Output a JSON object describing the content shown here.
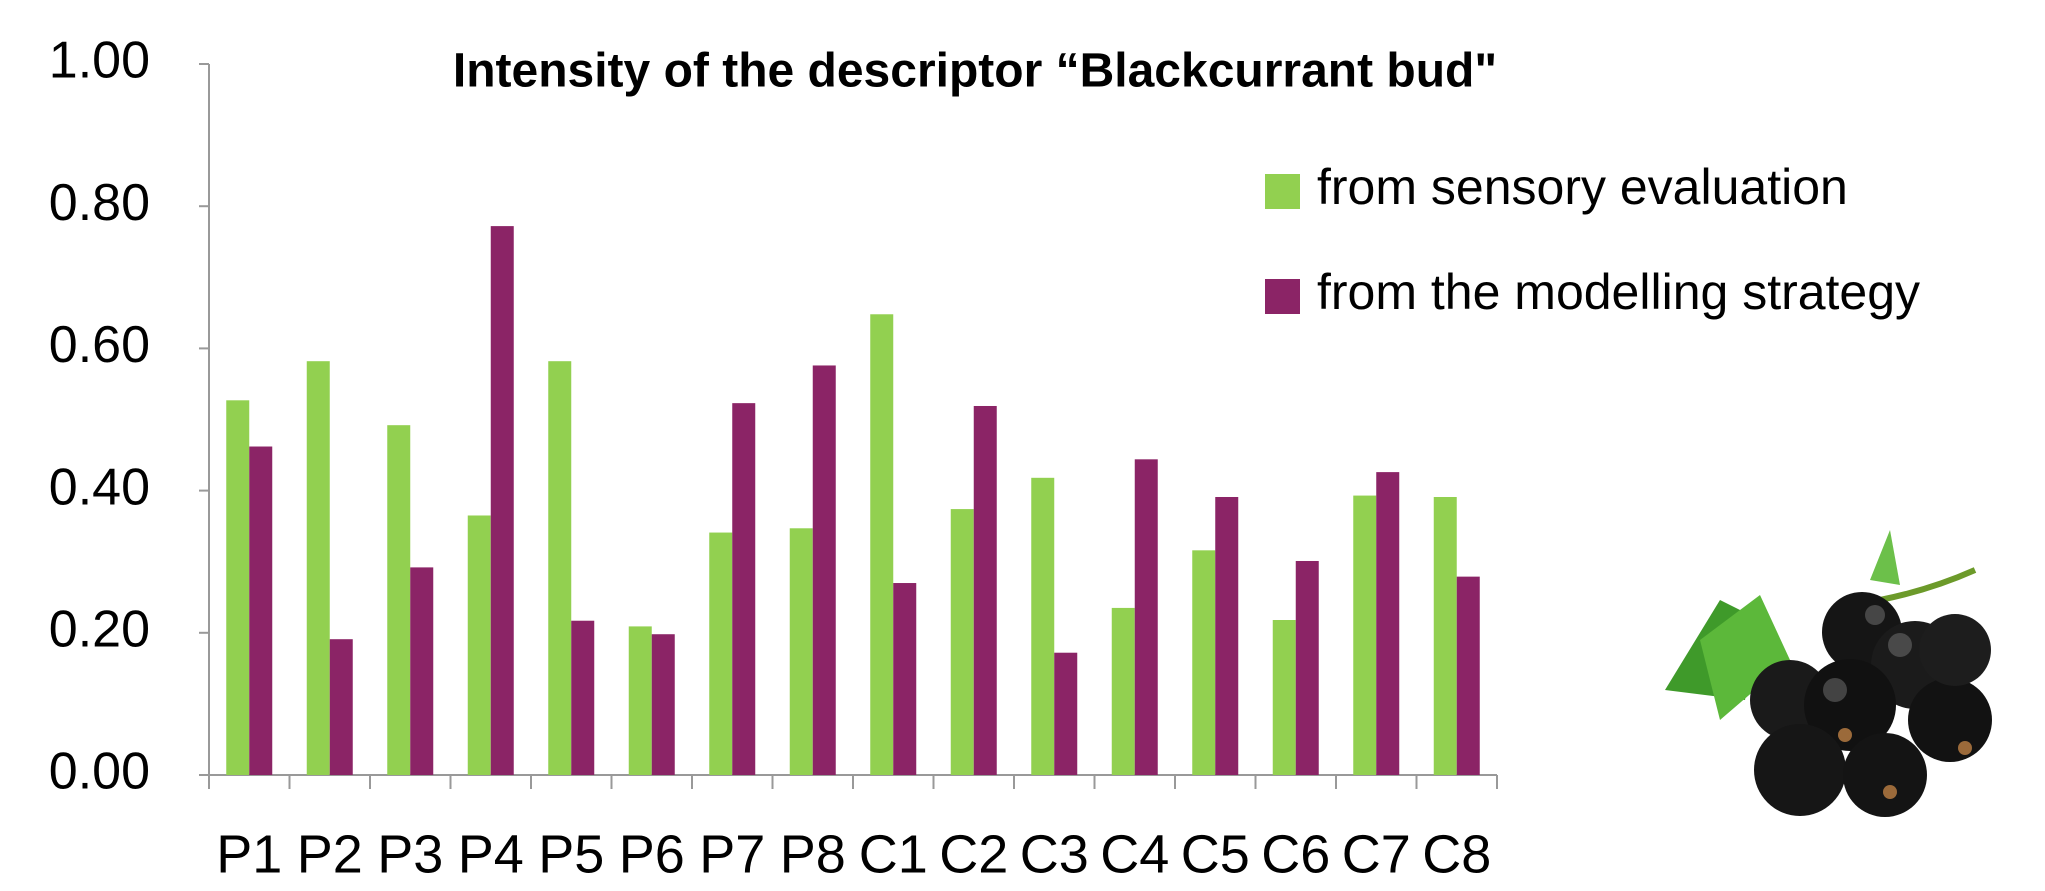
{
  "chart_data": {
    "type": "bar",
    "title": "Intensity of the descriptor “Blackcurrant bud\"",
    "categories": [
      "P1",
      "P2",
      "P3",
      "P4",
      "P5",
      "P6",
      "P7",
      "P8",
      "C1",
      "C2",
      "C3",
      "C4",
      "C5",
      "C6",
      "C7",
      "C8"
    ],
    "series": [
      {
        "name": "from sensory evaluation",
        "color": "#92d050",
        "values": [
          0.527,
          0.582,
          0.492,
          0.365,
          0.582,
          0.209,
          0.341,
          0.347,
          0.648,
          0.374,
          0.418,
          0.235,
          0.316,
          0.218,
          0.393,
          0.391
        ]
      },
      {
        "name": "from the modelling strategy",
        "color": "#8b2466",
        "values": [
          0.462,
          0.191,
          0.292,
          0.772,
          0.217,
          0.198,
          0.523,
          0.576,
          0.27,
          0.519,
          0.172,
          0.444,
          0.391,
          0.301,
          0.426,
          0.279
        ]
      }
    ],
    "ylim": [
      0,
      1
    ],
    "yticks": [
      {
        "value": 0,
        "label": "0.00"
      },
      {
        "value": 0.2,
        "label": "0.20"
      },
      {
        "value": 0.4,
        "label": "0.40"
      },
      {
        "value": 0.6,
        "label": "0.60"
      },
      {
        "value": 0.8,
        "label": "0.80"
      },
      {
        "value": 1,
        "label": "1.00"
      }
    ],
    "grid": false,
    "legend": "top-right"
  }
}
